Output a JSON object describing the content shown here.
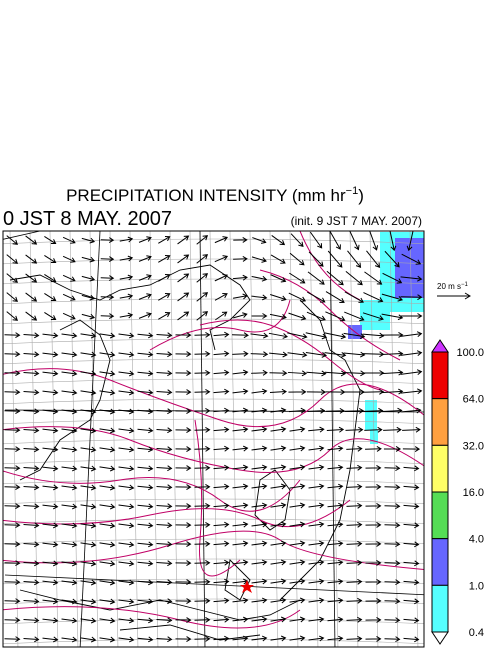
{
  "header": {
    "title": [
      "PRECIPITATION INTENSITY (mm hr",
      "−1",
      ")"
    ],
    "valid_time": "0 JST 8 MAY. 2007",
    "init_time": "(init. 9 JST 7 MAY. 2007)"
  },
  "legend": {
    "vector_scale": [
      "20 m s",
      "−1"
    ],
    "colorbar": {
      "labels": [
        "100.0",
        "64.0",
        "32.0",
        "16.0",
        "4.0",
        "1.0",
        "0.4"
      ],
      "colors": [
        "#cc33ff",
        "#ee0000",
        "#ffa040",
        "#ffff66",
        "#55dd55",
        "#6666ff",
        "#55ffff",
        "#ffffff"
      ]
    }
  }
}
